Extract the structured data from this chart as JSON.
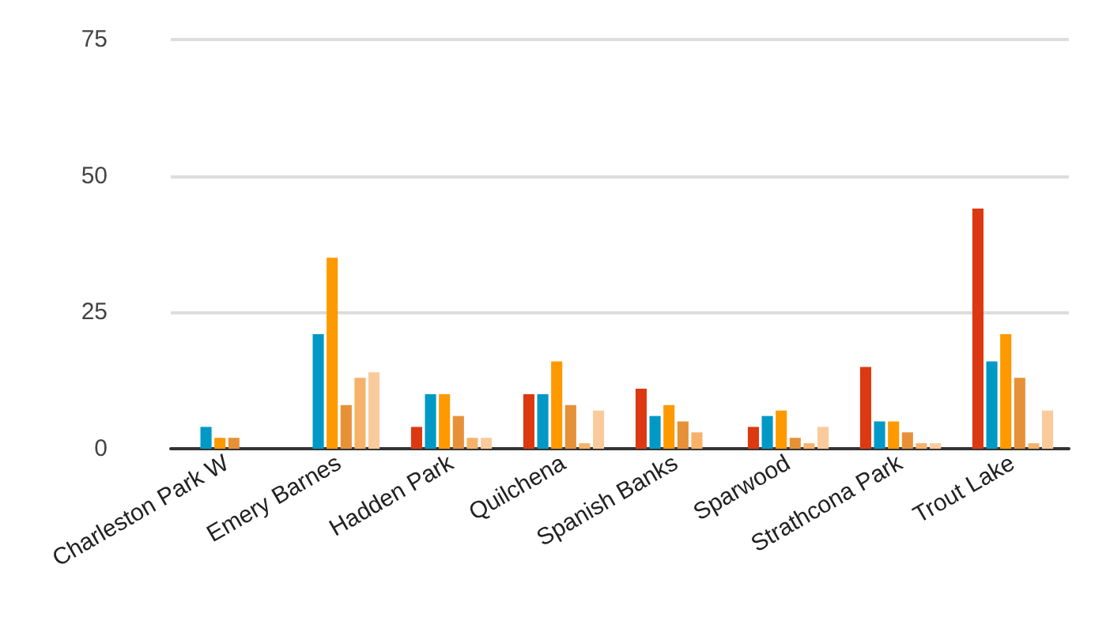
{
  "chart_data": {
    "type": "bar",
    "categories": [
      "Charleston Park W",
      "Emery Barnes",
      "Hadden Park",
      "Quilchena",
      "Spanish Banks",
      "Sparwood",
      "Strathcona Park",
      "Trout Lake"
    ],
    "series": [
      {
        "color": "#dc3912",
        "values": [
          0,
          0,
          4,
          10,
          11,
          4,
          15,
          44
        ]
      },
      {
        "color": "#0099c6",
        "values": [
          4,
          21,
          10,
          10,
          6,
          6,
          5,
          16
        ]
      },
      {
        "color": "#ff9900",
        "values": [
          2,
          35,
          10,
          16,
          8,
          7,
          5,
          21
        ]
      },
      {
        "color": "#e69138",
        "values": [
          2,
          8,
          6,
          8,
          5,
          2,
          3,
          13
        ]
      },
      {
        "color": "#f6b26b",
        "values": [
          0,
          13,
          2,
          1,
          3,
          1,
          1,
          1
        ]
      },
      {
        "color": "#f9cb9c",
        "values": [
          0,
          14,
          2,
          7,
          0,
          4,
          1,
          7
        ]
      }
    ],
    "ylim": [
      0,
      75
    ],
    "yticks": [
      0,
      25,
      50,
      75
    ],
    "grid": "y"
  }
}
